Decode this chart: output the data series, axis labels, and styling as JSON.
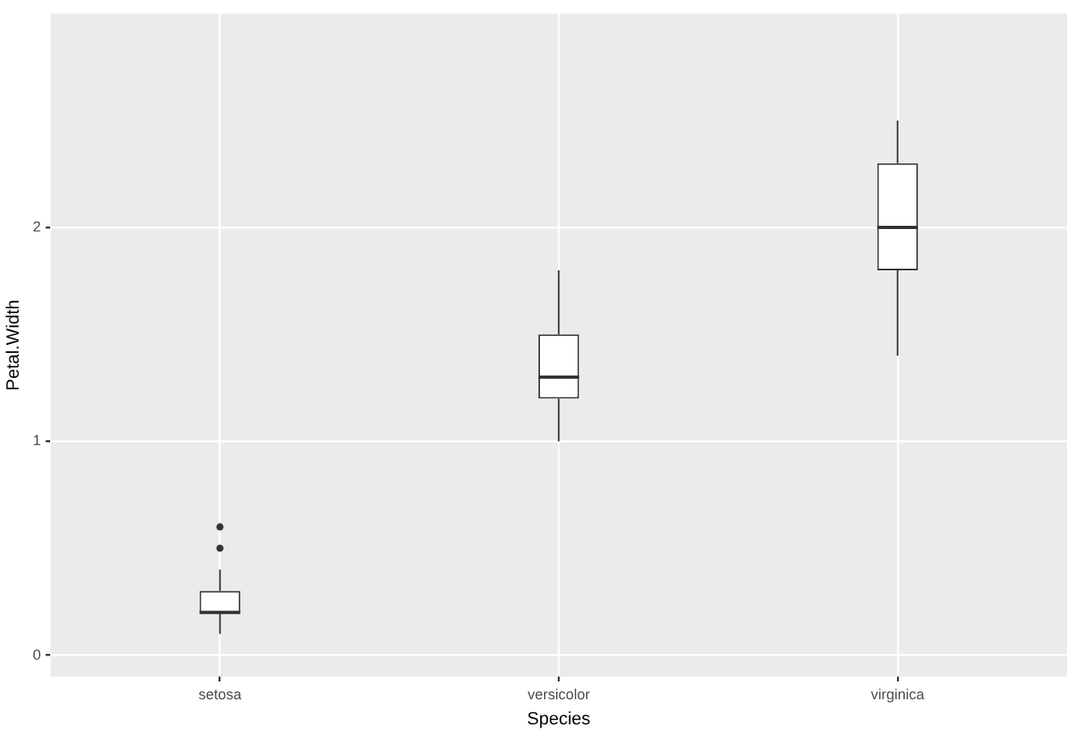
{
  "chart_data": {
    "type": "box",
    "xlabel": "Species",
    "ylabel": "Petal.Width",
    "categories": [
      "setosa",
      "versicolor",
      "virginica"
    ],
    "boxes": [
      {
        "low": 0.1,
        "q1": 0.2,
        "median": 0.2,
        "q3": 0.3,
        "high": 0.4,
        "outliers": [
          0.5,
          0.6
        ]
      },
      {
        "low": 1.0,
        "q1": 1.2,
        "median": 1.3,
        "q3": 1.5,
        "high": 1.8
      },
      {
        "low": 1.4,
        "q1": 1.8,
        "median": 2.0,
        "q3": 2.3,
        "high": 2.5
      }
    ],
    "color": "#333333",
    "ylim": [
      -0.1,
      3.0
    ],
    "yticks": [
      0,
      1,
      2
    ],
    "grid": true,
    "legend": false
  }
}
